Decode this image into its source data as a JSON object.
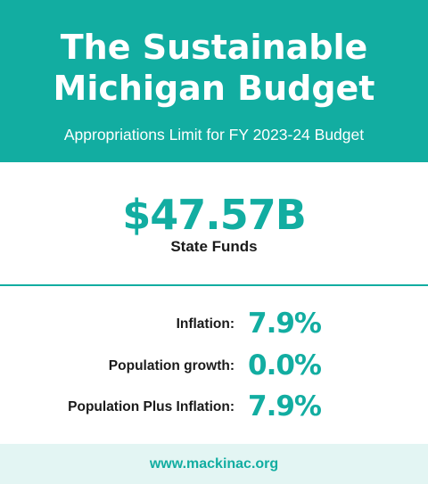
{
  "header": {
    "title_line1": "The Sustainable",
    "title_line2": "Michigan Budget",
    "subtitle": "Appropriations Limit for FY 2023-24 Budget"
  },
  "funds": {
    "amount": "$47.57B",
    "label": "State Funds"
  },
  "stats": [
    {
      "label": "Inflation:",
      "value": "7.9%"
    },
    {
      "label": "Population growth:",
      "value": "0.0%"
    },
    {
      "label": "Population Plus Inflation:",
      "value": "7.9%"
    }
  ],
  "footer": {
    "url": "www.mackinac.org"
  },
  "colors": {
    "accent": "#12ada1",
    "footer_bg": "#e3f5f3",
    "text": "#1a1a1a"
  }
}
